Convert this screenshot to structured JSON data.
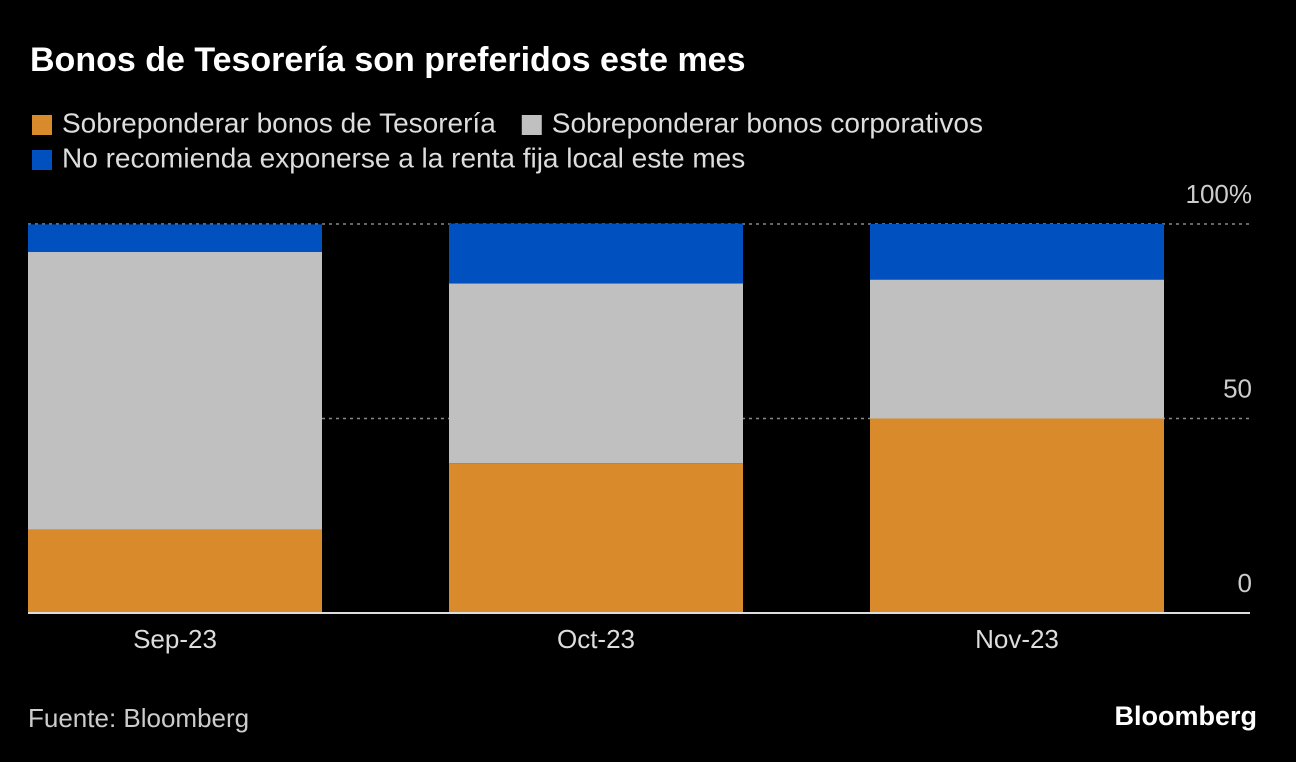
{
  "chart_data": {
    "type": "stacked-bar",
    "title": "Bonos de Tesorería son preferidos este mes",
    "categories": [
      "Sep-23",
      "Oct-23",
      "Nov-23"
    ],
    "series": [
      {
        "name": "Sobreponderar bonos de Tesorería",
        "color": "#d98a2b",
        "values": [
          21.4,
          38.5,
          50
        ]
      },
      {
        "name": "Sobreponderar bonos corporativos",
        "color": "#c0c0c0",
        "values": [
          71.4,
          46.2,
          35.7
        ]
      },
      {
        "name": "No recomienda exponerse a la renta fija local este mes",
        "color": "#0050c0",
        "values": [
          7.1,
          15.4,
          14.3
        ]
      }
    ],
    "ylim": [
      0,
      100
    ],
    "yticks": [
      0,
      50,
      {
        "value": 100,
        "label": "100%"
      }
    ],
    "grid": true,
    "source": "Fuente: Bloomberg",
    "brand": "Bloomberg"
  }
}
